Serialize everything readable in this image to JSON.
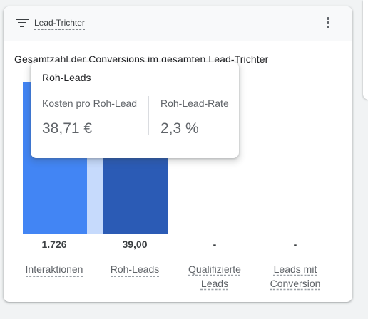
{
  "header": {
    "title": "Lead-Trichter",
    "icon": "filter-icon",
    "menu_icon": "more-vert-icon"
  },
  "colors": {
    "bar_primary": "#4285f4",
    "bar_connector": "#c6dafc",
    "bar_selected": "#2b5bb5"
  },
  "chart_data": {
    "type": "bar",
    "title": "Gesamtzahl der Conversions im gesamten Lead-Trichter",
    "categories": [
      "Interaktionen",
      "Roh-Leads",
      "Qualifizierte Leads",
      "Leads mit Conversion"
    ],
    "values": [
      1726,
      39,
      null,
      null
    ],
    "value_labels": [
      "1.726",
      "39,00",
      "-",
      "-"
    ],
    "ylim": [
      0,
      1726
    ]
  },
  "tooltip": {
    "title": "Roh-Leads",
    "metrics": [
      {
        "label": "Kosten pro Roh-Lead",
        "value": "38,71 €"
      },
      {
        "label": "Roh-Lead-Rate",
        "value": "2,3 %"
      }
    ]
  }
}
